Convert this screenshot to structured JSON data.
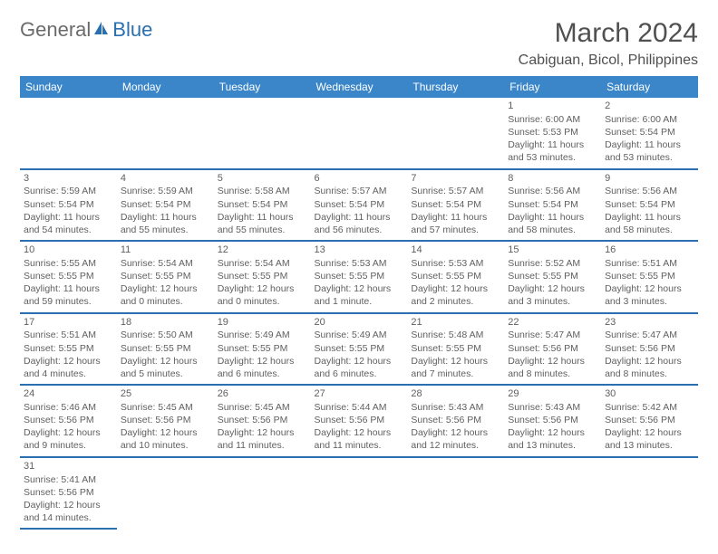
{
  "logo": {
    "part1": "General",
    "part2": "Blue"
  },
  "title": "March 2024",
  "location": "Cabiguan, Bicol, Philippines",
  "weekdays": [
    "Sunday",
    "Monday",
    "Tuesday",
    "Wednesday",
    "Thursday",
    "Friday",
    "Saturday"
  ],
  "colors": {
    "header_bg": "#3a86c8",
    "row_underline": "#2a6fb0",
    "text": "#505050"
  },
  "weeks": [
    [
      null,
      null,
      null,
      null,
      null,
      {
        "n": "1",
        "sr": "Sunrise: 6:00 AM",
        "ss": "Sunset: 5:53 PM",
        "dl": "Daylight: 11 hours and 53 minutes."
      },
      {
        "n": "2",
        "sr": "Sunrise: 6:00 AM",
        "ss": "Sunset: 5:54 PM",
        "dl": "Daylight: 11 hours and 53 minutes."
      }
    ],
    [
      {
        "n": "3",
        "sr": "Sunrise: 5:59 AM",
        "ss": "Sunset: 5:54 PM",
        "dl": "Daylight: 11 hours and 54 minutes."
      },
      {
        "n": "4",
        "sr": "Sunrise: 5:59 AM",
        "ss": "Sunset: 5:54 PM",
        "dl": "Daylight: 11 hours and 55 minutes."
      },
      {
        "n": "5",
        "sr": "Sunrise: 5:58 AM",
        "ss": "Sunset: 5:54 PM",
        "dl": "Daylight: 11 hours and 55 minutes."
      },
      {
        "n": "6",
        "sr": "Sunrise: 5:57 AM",
        "ss": "Sunset: 5:54 PM",
        "dl": "Daylight: 11 hours and 56 minutes."
      },
      {
        "n": "7",
        "sr": "Sunrise: 5:57 AM",
        "ss": "Sunset: 5:54 PM",
        "dl": "Daylight: 11 hours and 57 minutes."
      },
      {
        "n": "8",
        "sr": "Sunrise: 5:56 AM",
        "ss": "Sunset: 5:54 PM",
        "dl": "Daylight: 11 hours and 58 minutes."
      },
      {
        "n": "9",
        "sr": "Sunrise: 5:56 AM",
        "ss": "Sunset: 5:54 PM",
        "dl": "Daylight: 11 hours and 58 minutes."
      }
    ],
    [
      {
        "n": "10",
        "sr": "Sunrise: 5:55 AM",
        "ss": "Sunset: 5:55 PM",
        "dl": "Daylight: 11 hours and 59 minutes."
      },
      {
        "n": "11",
        "sr": "Sunrise: 5:54 AM",
        "ss": "Sunset: 5:55 PM",
        "dl": "Daylight: 12 hours and 0 minutes."
      },
      {
        "n": "12",
        "sr": "Sunrise: 5:54 AM",
        "ss": "Sunset: 5:55 PM",
        "dl": "Daylight: 12 hours and 0 minutes."
      },
      {
        "n": "13",
        "sr": "Sunrise: 5:53 AM",
        "ss": "Sunset: 5:55 PM",
        "dl": "Daylight: 12 hours and 1 minute."
      },
      {
        "n": "14",
        "sr": "Sunrise: 5:53 AM",
        "ss": "Sunset: 5:55 PM",
        "dl": "Daylight: 12 hours and 2 minutes."
      },
      {
        "n": "15",
        "sr": "Sunrise: 5:52 AM",
        "ss": "Sunset: 5:55 PM",
        "dl": "Daylight: 12 hours and 3 minutes."
      },
      {
        "n": "16",
        "sr": "Sunrise: 5:51 AM",
        "ss": "Sunset: 5:55 PM",
        "dl": "Daylight: 12 hours and 3 minutes."
      }
    ],
    [
      {
        "n": "17",
        "sr": "Sunrise: 5:51 AM",
        "ss": "Sunset: 5:55 PM",
        "dl": "Daylight: 12 hours and 4 minutes."
      },
      {
        "n": "18",
        "sr": "Sunrise: 5:50 AM",
        "ss": "Sunset: 5:55 PM",
        "dl": "Daylight: 12 hours and 5 minutes."
      },
      {
        "n": "19",
        "sr": "Sunrise: 5:49 AM",
        "ss": "Sunset: 5:55 PM",
        "dl": "Daylight: 12 hours and 6 minutes."
      },
      {
        "n": "20",
        "sr": "Sunrise: 5:49 AM",
        "ss": "Sunset: 5:55 PM",
        "dl": "Daylight: 12 hours and 6 minutes."
      },
      {
        "n": "21",
        "sr": "Sunrise: 5:48 AM",
        "ss": "Sunset: 5:55 PM",
        "dl": "Daylight: 12 hours and 7 minutes."
      },
      {
        "n": "22",
        "sr": "Sunrise: 5:47 AM",
        "ss": "Sunset: 5:56 PM",
        "dl": "Daylight: 12 hours and 8 minutes."
      },
      {
        "n": "23",
        "sr": "Sunrise: 5:47 AM",
        "ss": "Sunset: 5:56 PM",
        "dl": "Daylight: 12 hours and 8 minutes."
      }
    ],
    [
      {
        "n": "24",
        "sr": "Sunrise: 5:46 AM",
        "ss": "Sunset: 5:56 PM",
        "dl": "Daylight: 12 hours and 9 minutes."
      },
      {
        "n": "25",
        "sr": "Sunrise: 5:45 AM",
        "ss": "Sunset: 5:56 PM",
        "dl": "Daylight: 12 hours and 10 minutes."
      },
      {
        "n": "26",
        "sr": "Sunrise: 5:45 AM",
        "ss": "Sunset: 5:56 PM",
        "dl": "Daylight: 12 hours and 11 minutes."
      },
      {
        "n": "27",
        "sr": "Sunrise: 5:44 AM",
        "ss": "Sunset: 5:56 PM",
        "dl": "Daylight: 12 hours and 11 minutes."
      },
      {
        "n": "28",
        "sr": "Sunrise: 5:43 AM",
        "ss": "Sunset: 5:56 PM",
        "dl": "Daylight: 12 hours and 12 minutes."
      },
      {
        "n": "29",
        "sr": "Sunrise: 5:43 AM",
        "ss": "Sunset: 5:56 PM",
        "dl": "Daylight: 12 hours and 13 minutes."
      },
      {
        "n": "30",
        "sr": "Sunrise: 5:42 AM",
        "ss": "Sunset: 5:56 PM",
        "dl": "Daylight: 12 hours and 13 minutes."
      }
    ],
    [
      {
        "n": "31",
        "sr": "Sunrise: 5:41 AM",
        "ss": "Sunset: 5:56 PM",
        "dl": "Daylight: 12 hours and 14 minutes."
      },
      null,
      null,
      null,
      null,
      null,
      null
    ]
  ]
}
